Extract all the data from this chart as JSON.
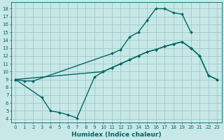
{
  "bg_color": "#c8e8e8",
  "grid_color": "#a0c8c8",
  "line_color": "#006666",
  "line_width": 1.0,
  "marker": "D",
  "marker_size": 2.0,
  "xlabel": "Humidex (Indice chaleur)",
  "xlim": [
    -0.5,
    23.5
  ],
  "ylim": [
    3.5,
    18.8
  ],
  "xticks": [
    0,
    1,
    2,
    3,
    4,
    5,
    6,
    7,
    8,
    9,
    10,
    11,
    12,
    13,
    14,
    15,
    16,
    17,
    18,
    19,
    20,
    21,
    22,
    23
  ],
  "yticks": [
    4,
    5,
    6,
    7,
    8,
    9,
    10,
    11,
    12,
    13,
    14,
    15,
    16,
    17,
    18
  ],
  "curve_top_x": [
    0,
    1,
    2,
    11,
    12,
    13,
    14,
    15,
    16,
    17,
    18,
    19,
    20
  ],
  "curve_top_y": [
    9,
    8.8,
    8.8,
    12.3,
    12.8,
    14.4,
    15.0,
    16.5,
    18.0,
    18.0,
    17.5,
    17.3,
    15.0
  ],
  "curve_mid_x": [
    0,
    10,
    11,
    12,
    13,
    14,
    15,
    16,
    17,
    18,
    19,
    20,
    21,
    22,
    23
  ],
  "curve_mid_y": [
    9,
    10.0,
    10.5,
    11.0,
    11.5,
    12.0,
    12.5,
    12.8,
    13.2,
    13.5,
    13.8,
    13.0,
    12.0,
    9.5,
    9.0
  ],
  "curve_bot_x": [
    0,
    3,
    4,
    5,
    6,
    7,
    9,
    10,
    11,
    12,
    13,
    14,
    15,
    16,
    17,
    18,
    19,
    20,
    21,
    22,
    23
  ],
  "curve_bot_y": [
    9,
    6.7,
    5.0,
    4.8,
    4.5,
    4.1,
    9.3,
    10.0,
    10.5,
    11.0,
    11.5,
    12.0,
    12.5,
    12.8,
    13.2,
    13.5,
    13.8,
    13.0,
    12.0,
    9.5,
    9.0
  ]
}
